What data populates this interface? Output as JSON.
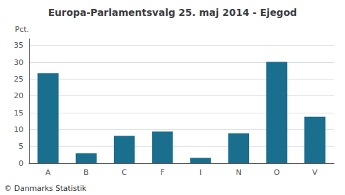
{
  "chart_data": {
    "type": "bar",
    "title": "Europa-Parlamentsvalg 25. maj 2014 - Ejegod",
    "categories": [
      "A",
      "B",
      "C",
      "F",
      "I",
      "N",
      "O",
      "V"
    ],
    "values": [
      26.7,
      3.0,
      8.1,
      9.4,
      1.6,
      8.9,
      30.1,
      13.8
    ],
    "color": "#1a6e8e",
    "ylabel": "Pct.",
    "annotations": [
      "© Danmarks Statistik"
    ],
    "ylim": [
      0,
      37
    ],
    "yticks": [
      0,
      5,
      10,
      15,
      20,
      25,
      30,
      35
    ],
    "grid": true
  }
}
